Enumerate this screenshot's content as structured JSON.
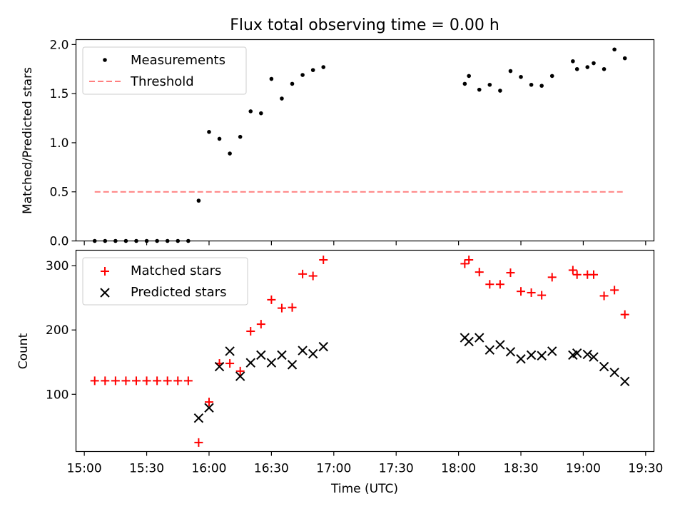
{
  "figure_title": "Flux total observing time = 0.00 h",
  "colors": {
    "measurement": "#000000",
    "threshold": "#ff7f7f",
    "matched": "#ff0000",
    "predicted": "#000000",
    "legend_border": "#cccccc"
  },
  "x_axis": {
    "label": "Time (UTC)",
    "ticks": [
      "15:00",
      "15:30",
      "16:00",
      "16:30",
      "17:00",
      "17:30",
      "18:00",
      "18:30",
      "19:00",
      "19:30"
    ],
    "range": [
      "14:56",
      "19:34"
    ]
  },
  "chart_data": [
    {
      "type": "scatter",
      "panel": "top",
      "title": "Flux total observing time = 0.00 h",
      "xlabel": "",
      "ylabel": "Matched/Predicted stars",
      "ylim": [
        0,
        2.05
      ],
      "yticks": [
        "0.0",
        "0.5",
        "1.0",
        "1.5",
        "2.0"
      ],
      "grid": false,
      "legend_position": "upper left",
      "series": [
        {
          "name": "Measurements",
          "style": "dot",
          "x": [
            "15:05",
            "15:10",
            "15:15",
            "15:20",
            "15:25",
            "15:30",
            "15:35",
            "15:40",
            "15:45",
            "15:50",
            "15:55",
            "16:00",
            "16:05",
            "16:10",
            "16:15",
            "16:20",
            "16:25",
            "16:30",
            "16:35",
            "16:40",
            "16:45",
            "16:50",
            "16:55",
            "18:03",
            "18:05",
            "18:10",
            "18:15",
            "18:20",
            "18:25",
            "18:30",
            "18:35",
            "18:40",
            "18:45",
            "18:55",
            "18:57",
            "19:02",
            "19:05",
            "19:10",
            "19:15",
            "19:20"
          ],
          "y": [
            0.0,
            0.0,
            0.0,
            0.0,
            0.0,
            0.0,
            0.0,
            0.0,
            0.0,
            0.0,
            0.41,
            1.11,
            1.04,
            0.89,
            1.06,
            1.32,
            1.3,
            1.65,
            1.45,
            1.6,
            1.69,
            1.74,
            1.77,
            1.6,
            1.68,
            1.54,
            1.59,
            1.53,
            1.73,
            1.67,
            1.59,
            1.58,
            1.68,
            1.83,
            1.75,
            1.77,
            1.81,
            1.75,
            1.95,
            1.86
          ]
        },
        {
          "name": "Threshold",
          "style": "dashed-line",
          "x": [
            "15:05",
            "19:20"
          ],
          "y": [
            0.5,
            0.5
          ]
        }
      ]
    },
    {
      "type": "scatter",
      "panel": "bottom",
      "title": "",
      "xlabel": "Time (UTC)",
      "ylabel": "Count",
      "ylim": [
        11,
        324
      ],
      "yticks": [
        "100",
        "200",
        "300"
      ],
      "grid": false,
      "legend_position": "upper left",
      "series": [
        {
          "name": "Matched stars",
          "style": "plus",
          "x": [
            "15:05",
            "15:10",
            "15:15",
            "15:20",
            "15:25",
            "15:30",
            "15:35",
            "15:40",
            "15:45",
            "15:50",
            "15:55",
            "16:00",
            "16:05",
            "16:10",
            "16:15",
            "16:20",
            "16:25",
            "16:30",
            "16:35",
            "16:40",
            "16:45",
            "16:50",
            "16:55",
            "18:03",
            "18:05",
            "18:10",
            "18:15",
            "18:20",
            "18:25",
            "18:30",
            "18:35",
            "18:40",
            "18:45",
            "18:55",
            "18:57",
            "19:02",
            "19:05",
            "19:10",
            "19:15",
            "19:20"
          ],
          "y": [
            121,
            121,
            121,
            121,
            121,
            121,
            121,
            121,
            121,
            121,
            25,
            88,
            148,
            148,
            136,
            198,
            209,
            247,
            234,
            235,
            287,
            284,
            309,
            303,
            309,
            290,
            271,
            271,
            289,
            260,
            258,
            254,
            282,
            293,
            286,
            286,
            286,
            253,
            262,
            224
          ]
        },
        {
          "name": "Predicted stars",
          "style": "x",
          "x": [
            "15:55",
            "16:00",
            "16:05",
            "16:10",
            "16:15",
            "16:20",
            "16:25",
            "16:30",
            "16:35",
            "16:40",
            "16:45",
            "16:50",
            "16:55",
            "18:03",
            "18:05",
            "18:10",
            "18:15",
            "18:20",
            "18:25",
            "18:30",
            "18:35",
            "18:40",
            "18:45",
            "18:55",
            "18:57",
            "19:02",
            "19:05",
            "19:10",
            "19:15",
            "19:20"
          ],
          "y": [
            63,
            79,
            143,
            167,
            128,
            149,
            161,
            149,
            161,
            146,
            168,
            163,
            174,
            188,
            182,
            188,
            169,
            177,
            166,
            155,
            161,
            160,
            167,
            161,
            164,
            162,
            158,
            143,
            134,
            120
          ]
        }
      ]
    }
  ]
}
